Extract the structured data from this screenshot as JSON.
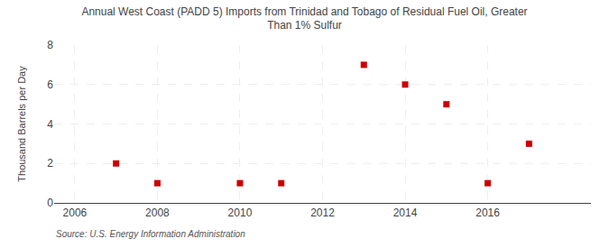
{
  "chart_data": {
    "type": "scatter",
    "title": "Annual West Coast (PADD 5) Imports from Trinidad and Tobago of Residual Fuel Oil, Greater\nThan 1% Sulfur",
    "ylabel": "Thousand Barrels per Day",
    "annotations": [
      "Source: U.S. Energy Information Administration"
    ],
    "x": [
      2007,
      2008,
      2010,
      2011,
      2013,
      2014,
      2015,
      2016,
      2017
    ],
    "values": [
      2,
      1,
      1,
      1,
      7,
      6,
      5,
      1,
      3
    ],
    "xlim": [
      2005.5,
      2018.5
    ],
    "ylim": [
      0,
      8
    ],
    "xticks": [
      2006,
      2008,
      2010,
      2012,
      2014,
      2016
    ],
    "yticks": [
      0,
      2,
      4,
      6,
      8
    ],
    "color": "#cc0000",
    "marker": "square",
    "grid": true
  }
}
